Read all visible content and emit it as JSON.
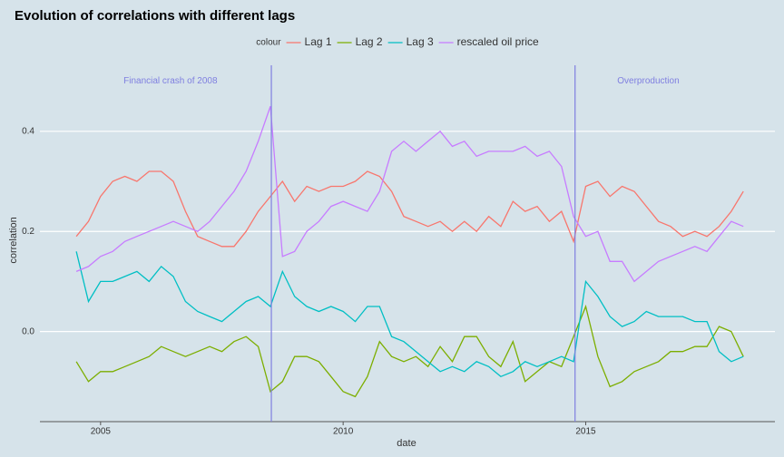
{
  "chart_data": {
    "type": "line",
    "title": "Evolution of correlations with different lags",
    "x_label": "date",
    "y_label": "correlation",
    "legend_title": "colour",
    "legend_position": "top",
    "grid": true,
    "x": [
      2004.5,
      2004.75,
      2005,
      2005.25,
      2005.5,
      2005.75,
      2006,
      2006.25,
      2006.5,
      2006.75,
      2007,
      2007.25,
      2007.5,
      2007.75,
      2008,
      2008.25,
      2008.5,
      2008.75,
      2009,
      2009.25,
      2009.5,
      2009.75,
      2010,
      2010.25,
      2010.5,
      2010.75,
      2011,
      2011.25,
      2011.5,
      2011.75,
      2012,
      2012.25,
      2012.5,
      2012.75,
      2013,
      2013.25,
      2013.5,
      2013.75,
      2014,
      2014.25,
      2014.5,
      2014.75,
      2015,
      2015.25,
      2015.5,
      2015.75,
      2016,
      2016.25,
      2016.5,
      2016.75,
      2017,
      2017.25,
      2017.5,
      2017.75,
      2018,
      2018.25
    ],
    "series": [
      {
        "name": "Lag 1",
        "color": "#f8766d",
        "values": [
          0.19,
          0.22,
          0.27,
          0.3,
          0.31,
          0.3,
          0.32,
          0.32,
          0.3,
          0.24,
          0.19,
          0.18,
          0.17,
          0.17,
          0.2,
          0.24,
          0.27,
          0.3,
          0.26,
          0.29,
          0.28,
          0.29,
          0.29,
          0.3,
          0.32,
          0.31,
          0.28,
          0.23,
          0.22,
          0.21,
          0.22,
          0.2,
          0.22,
          0.2,
          0.23,
          0.21,
          0.26,
          0.24,
          0.25,
          0.22,
          0.24,
          0.18,
          0.29,
          0.3,
          0.27,
          0.29,
          0.28,
          0.25,
          0.22,
          0.21,
          0.19,
          0.2,
          0.19,
          0.21,
          0.24,
          0.28
        ]
      },
      {
        "name": "Lag 2",
        "color": "#7cae00",
        "values": [
          -0.06,
          -0.1,
          -0.08,
          -0.08,
          -0.07,
          -0.06,
          -0.05,
          -0.03,
          -0.04,
          -0.05,
          -0.04,
          -0.03,
          -0.04,
          -0.02,
          -0.01,
          -0.03,
          -0.12,
          -0.1,
          -0.05,
          -0.05,
          -0.06,
          -0.09,
          -0.12,
          -0.13,
          -0.09,
          -0.02,
          -0.05,
          -0.06,
          -0.05,
          -0.07,
          -0.03,
          -0.06,
          -0.01,
          -0.01,
          -0.05,
          -0.07,
          -0.02,
          -0.1,
          -0.08,
          -0.06,
          -0.07,
          -0.01,
          0.05,
          -0.05,
          -0.11,
          -0.1,
          -0.08,
          -0.07,
          -0.06,
          -0.04,
          -0.04,
          -0.03,
          -0.03,
          0.01,
          0.0,
          -0.05
        ]
      },
      {
        "name": "Lag 3",
        "color": "#00bfc4",
        "values": [
          0.16,
          0.06,
          0.1,
          0.1,
          0.11,
          0.12,
          0.1,
          0.13,
          0.11,
          0.06,
          0.04,
          0.03,
          0.02,
          0.04,
          0.06,
          0.07,
          0.05,
          0.12,
          0.07,
          0.05,
          0.04,
          0.05,
          0.04,
          0.02,
          0.05,
          0.05,
          -0.01,
          -0.02,
          -0.04,
          -0.06,
          -0.08,
          -0.07,
          -0.08,
          -0.06,
          -0.07,
          -0.09,
          -0.08,
          -0.06,
          -0.07,
          -0.06,
          -0.05,
          -0.06,
          0.1,
          0.07,
          0.03,
          0.01,
          0.02,
          0.04,
          0.03,
          0.03,
          0.03,
          0.02,
          0.02,
          -0.04,
          -0.06,
          -0.05
        ]
      },
      {
        "name": "rescaled oil price",
        "color": "#c77cff",
        "values": [
          0.12,
          0.13,
          0.15,
          0.16,
          0.18,
          0.19,
          0.2,
          0.21,
          0.22,
          0.21,
          0.2,
          0.22,
          0.25,
          0.28,
          0.32,
          0.38,
          0.45,
          0.15,
          0.16,
          0.2,
          0.22,
          0.25,
          0.26,
          0.25,
          0.24,
          0.28,
          0.36,
          0.38,
          0.36,
          0.38,
          0.4,
          0.37,
          0.38,
          0.35,
          0.36,
          0.36,
          0.36,
          0.37,
          0.35,
          0.36,
          0.33,
          0.23,
          0.19,
          0.2,
          0.14,
          0.14,
          0.1,
          0.12,
          0.14,
          0.15,
          0.16,
          0.17,
          0.16,
          0.19,
          0.22,
          0.21
        ]
      }
    ],
    "vlines": {
      "color": "#7f7fe0",
      "x": [
        2008.52,
        2014.78
      ]
    },
    "annotations": [
      {
        "text": "Financial crash of 2008",
        "x": 2006.44,
        "y": 0.5
      },
      {
        "text": "Overproduction",
        "x": 2016.29,
        "y": 0.5
      }
    ],
    "xlim": [
      2003.75,
      2018.9
    ],
    "ylim": [
      -0.18,
      0.55
    ],
    "xticks": [
      2005,
      2010,
      2015
    ],
    "yticks": [
      0.0,
      0.2,
      0.4
    ]
  }
}
